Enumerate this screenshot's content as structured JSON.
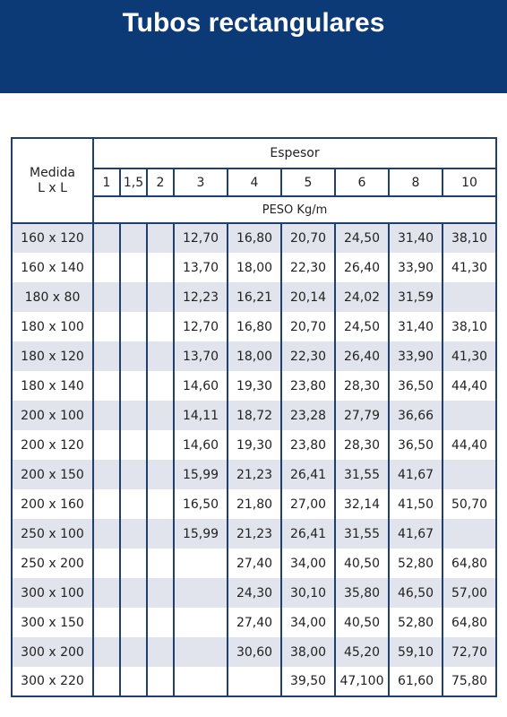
{
  "header": {
    "title": "Tubos rectangulares"
  },
  "table": {
    "medida_label_1": "Medida",
    "medida_label_2": "L x L",
    "espesor_label": "Espesor",
    "peso_label": "PESO Kg/m",
    "thicknesses": [
      "1",
      "1,5",
      "2",
      "3",
      "4",
      "5",
      "6",
      "8",
      "10"
    ],
    "rows": [
      {
        "size": "160 x 120",
        "values": [
          "",
          "",
          "",
          "12,70",
          "16,80",
          "20,70",
          "24,50",
          "31,40",
          "38,10"
        ]
      },
      {
        "size": "160 x 140",
        "values": [
          "",
          "",
          "",
          "13,70",
          "18,00",
          "22,30",
          "26,40",
          "33,90",
          "41,30"
        ]
      },
      {
        "size": "180 x 80",
        "values": [
          "",
          "",
          "",
          "12,23",
          "16,21",
          "20,14",
          "24,02",
          "31,59",
          ""
        ]
      },
      {
        "size": "180 x 100",
        "values": [
          "",
          "",
          "",
          "12,70",
          "16,80",
          "20,70",
          "24,50",
          "31,40",
          "38,10"
        ]
      },
      {
        "size": "180 x 120",
        "values": [
          "",
          "",
          "",
          "13,70",
          "18,00",
          "22,30",
          "26,40",
          "33,90",
          "41,30"
        ]
      },
      {
        "size": "180 x 140",
        "values": [
          "",
          "",
          "",
          "14,60",
          "19,30",
          "23,80",
          "28,30",
          "36,50",
          "44,40"
        ]
      },
      {
        "size": "200 x 100",
        "values": [
          "",
          "",
          "",
          "14,11",
          "18,72",
          "23,28",
          "27,79",
          "36,66",
          ""
        ]
      },
      {
        "size": "200 x 120",
        "values": [
          "",
          "",
          "",
          "14,60",
          "19,30",
          "23,80",
          "28,30",
          "36,50",
          "44,40"
        ]
      },
      {
        "size": "200 x 150",
        "values": [
          "",
          "",
          "",
          "15,99",
          "21,23",
          "26,41",
          "31,55",
          "41,67",
          ""
        ]
      },
      {
        "size": "200 x 160",
        "values": [
          "",
          "",
          "",
          "16,50",
          "21,80",
          "27,00",
          "32,14",
          "41,50",
          "50,70"
        ]
      },
      {
        "size": "250 x 100",
        "values": [
          "",
          "",
          "",
          "15,99",
          "21,23",
          "26,41",
          "31,55",
          "41,67",
          ""
        ]
      },
      {
        "size": "250 x 200",
        "values": [
          "",
          "",
          "",
          "",
          "27,40",
          "34,00",
          "40,50",
          "52,80",
          "64,80"
        ]
      },
      {
        "size": "300 x 100",
        "values": [
          "",
          "",
          "",
          "",
          "24,30",
          "30,10",
          "35,80",
          "46,50",
          "57,00"
        ]
      },
      {
        "size": "300 x 150",
        "values": [
          "",
          "",
          "",
          "",
          "27,40",
          "34,00",
          "40,50",
          "52,80",
          "64,80"
        ]
      },
      {
        "size": "300 x 200",
        "values": [
          "",
          "",
          "",
          "",
          "30,60",
          "38,00",
          "45,20",
          "59,10",
          "72,70"
        ]
      },
      {
        "size": "300 x 220",
        "values": [
          "",
          "",
          "",
          "",
          "",
          "39,50",
          "47,100",
          "61,60",
          "75,80"
        ]
      }
    ]
  }
}
